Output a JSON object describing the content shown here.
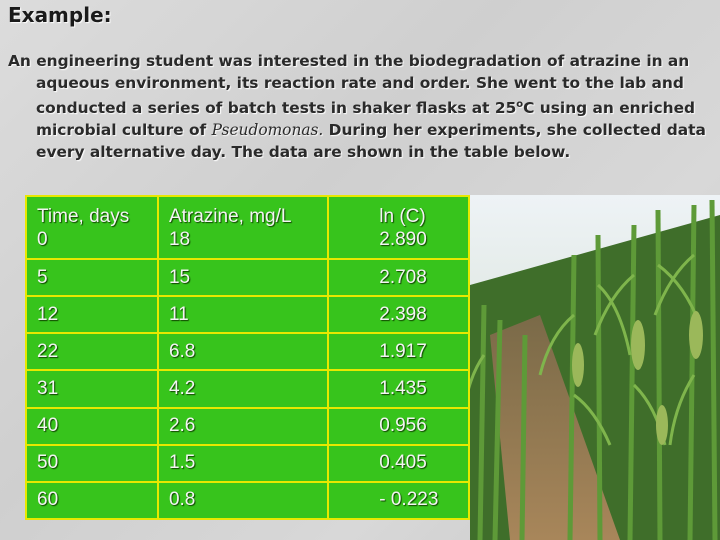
{
  "header": {
    "title": "Example:"
  },
  "paragraph": {
    "parts": [
      "An engineering student was interested in the biodegradation of atrazine in an aqueous environment, its reaction rate and order. She went to the lab and conducted a series of batch tests in shaker flasks at 25",
      "o",
      "C using an enriched  microbial culture of ",
      "Pseudomonas.",
      "  During her experiments, she collected data every alternative day. The data are shown in the table below."
    ]
  },
  "table": {
    "columns": [
      "Time, days",
      "Atrazine, mg/L",
      "ln (C)"
    ],
    "rows": [
      [
        "0",
        "18",
        "2.890"
      ],
      [
        "5",
        "15",
        "2.708"
      ],
      [
        "12",
        "11",
        "2.398"
      ],
      [
        "22",
        "6.8",
        "1.917"
      ],
      [
        "31",
        "4.2",
        "1.435"
      ],
      [
        "40",
        "2.6",
        "0.956"
      ],
      [
        "50",
        "1.5",
        "0.405"
      ],
      [
        "60",
        "0.8",
        "- 0.223"
      ]
    ]
  }
}
